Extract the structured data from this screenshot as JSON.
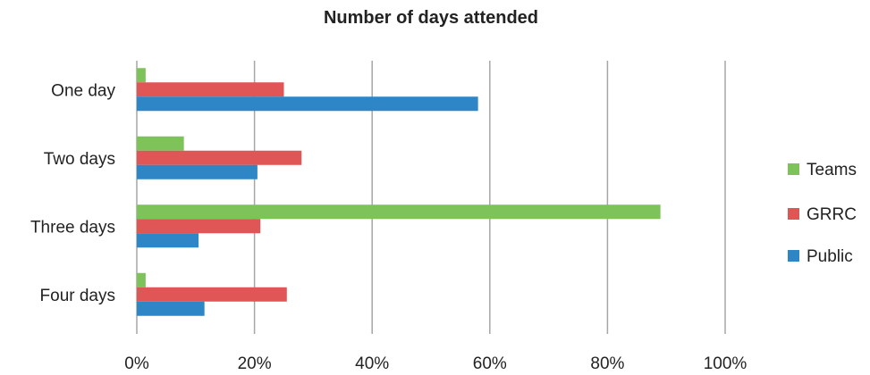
{
  "chart_data": {
    "type": "bar",
    "orientation": "horizontal",
    "title": "Number of days attended",
    "xlabel": "",
    "ylabel": "",
    "xlim": [
      0,
      100
    ],
    "x_ticks": [
      "0%",
      "20%",
      "40%",
      "60%",
      "80%",
      "100%"
    ],
    "grid": "vertical",
    "legend_position": "right",
    "categories": [
      "One day",
      "Two days",
      "Three days",
      "Four days"
    ],
    "series": [
      {
        "name": "Teams",
        "color": "#7dc35a",
        "values": [
          1.5,
          8,
          89,
          1.5
        ]
      },
      {
        "name": "GRRC",
        "color": "#e05555",
        "values": [
          25,
          28,
          21,
          25.5
        ]
      },
      {
        "name": "Public",
        "color": "#2f86c6",
        "values": [
          58,
          20.5,
          10.5,
          11.5
        ]
      }
    ]
  }
}
